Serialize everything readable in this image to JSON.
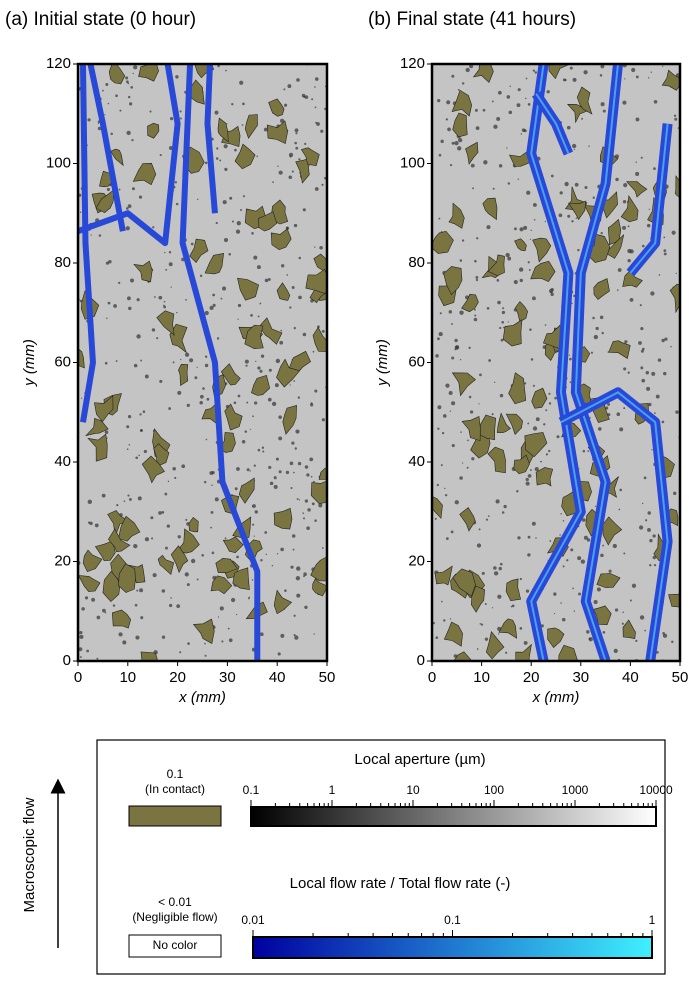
{
  "chart_data": [
    {
      "type": "image",
      "title": "(a) Initial state (0 hour)",
      "x_label": "x (mm)",
      "y_label": "y (mm)",
      "xlim": [
        0,
        50
      ],
      "ylim": [
        0,
        120
      ],
      "xticks": [
        0,
        10,
        20,
        30,
        40,
        50
      ],
      "yticks": [
        0,
        20,
        40,
        60,
        80,
        100,
        120
      ]
    },
    {
      "type": "image",
      "title": "(b) Final state (41 hours)",
      "x_label": "x (mm)",
      "y_label": "y (mm)",
      "xlim": [
        0,
        50
      ],
      "ylim": [
        0,
        120
      ],
      "xticks": [
        0,
        10,
        20,
        30,
        40,
        50
      ],
      "yticks": [
        0,
        20,
        40,
        60,
        80,
        100,
        120
      ]
    }
  ],
  "legend": {
    "flow_label": "Macroscopic flow",
    "contact": {
      "value": "0.1",
      "note": "(In contact)",
      "color": "#7a7540"
    },
    "aperture": {
      "title": "Local aperture (µm)",
      "lim": [
        0.1,
        10000
      ],
      "ticks": [
        0.1,
        1,
        10,
        100,
        1000,
        10000
      ],
      "log": true,
      "colors": [
        "#000000",
        "#ffffff"
      ]
    },
    "negligible": {
      "value": "< 0.01",
      "note": "(Negligible flow)",
      "box": "No color"
    },
    "flow": {
      "title": "Local flow rate / Total flow rate (-)",
      "lim": [
        0.01,
        1
      ],
      "ticks": [
        0.01,
        0.1,
        1
      ],
      "log": true,
      "colors": [
        "#0000a0",
        "#3ff0ff"
      ]
    }
  }
}
